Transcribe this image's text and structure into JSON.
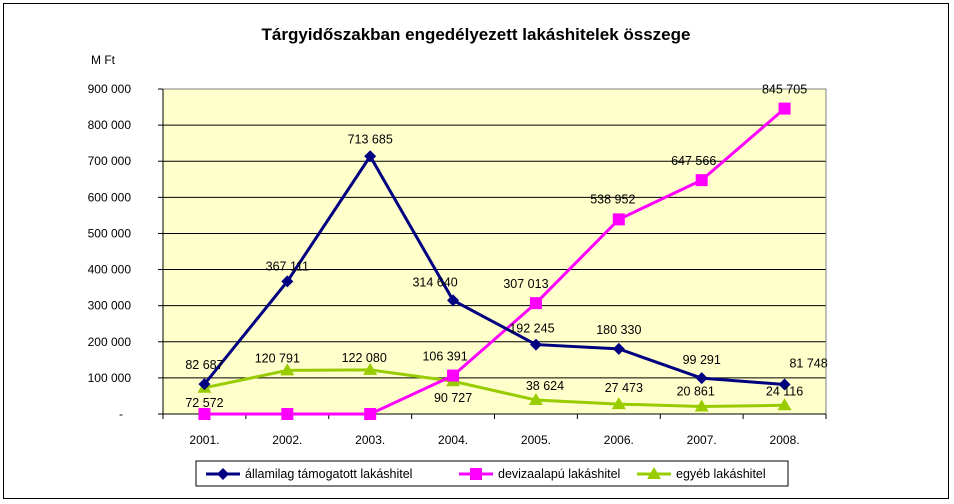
{
  "chart_data": {
    "type": "line",
    "title": "Tárgyidőszakban engedélyezett lakáshitelek összege",
    "ylabel": "M Ft",
    "xlabel": "",
    "categories": [
      "2001.",
      "2002.",
      "2003.",
      "2004.",
      "2005.",
      "2006.",
      "2007.",
      "2008."
    ],
    "ylim": [
      0,
      900000
    ],
    "yticks": [
      {
        "value": 900000,
        "label": "900 000"
      },
      {
        "value": 800000,
        "label": "800 000"
      },
      {
        "value": 700000,
        "label": "700 000"
      },
      {
        "value": 600000,
        "label": "600 000"
      },
      {
        "value": 500000,
        "label": "500 000"
      },
      {
        "value": 400000,
        "label": "400 000"
      },
      {
        "value": 300000,
        "label": "300 000"
      },
      {
        "value": 200000,
        "label": "200 000"
      },
      {
        "value": 100000,
        "label": "100 000"
      },
      {
        "value": 0,
        "label": "-"
      }
    ],
    "grid": true,
    "plot_background": "#FFFFCC",
    "legend_position": "bottom",
    "series": [
      {
        "name": "államilag támogatott lakáshitel",
        "color": "#000080",
        "marker": "diamond",
        "values": [
          82687,
          367111,
          713685,
          314640,
          192245,
          180330,
          99291,
          81748
        ],
        "labels": [
          "82 687",
          "367 111",
          "713 685",
          "314 640",
          "192 245",
          "180 330",
          "99 291",
          "81 748"
        ]
      },
      {
        "name": "devizaalapú lakáshitel",
        "color": "#FF00FF",
        "marker": "square",
        "values": [
          0,
          0,
          0,
          106391,
          307013,
          538952,
          647566,
          845705
        ],
        "labels": [
          "",
          "",
          "",
          "106 391",
          "307 013",
          "538 952",
          "647 566",
          "845 705"
        ]
      },
      {
        "name": "egyéb lakáshitel",
        "color": "#99CC00",
        "marker": "triangle",
        "values": [
          72572,
          120791,
          122080,
          90727,
          38624,
          27473,
          20861,
          24116
        ],
        "labels": [
          "72 572",
          "120 791",
          "122 080",
          "90 727",
          "38 624",
          "27 473",
          "20 861",
          "24 116"
        ]
      }
    ]
  }
}
